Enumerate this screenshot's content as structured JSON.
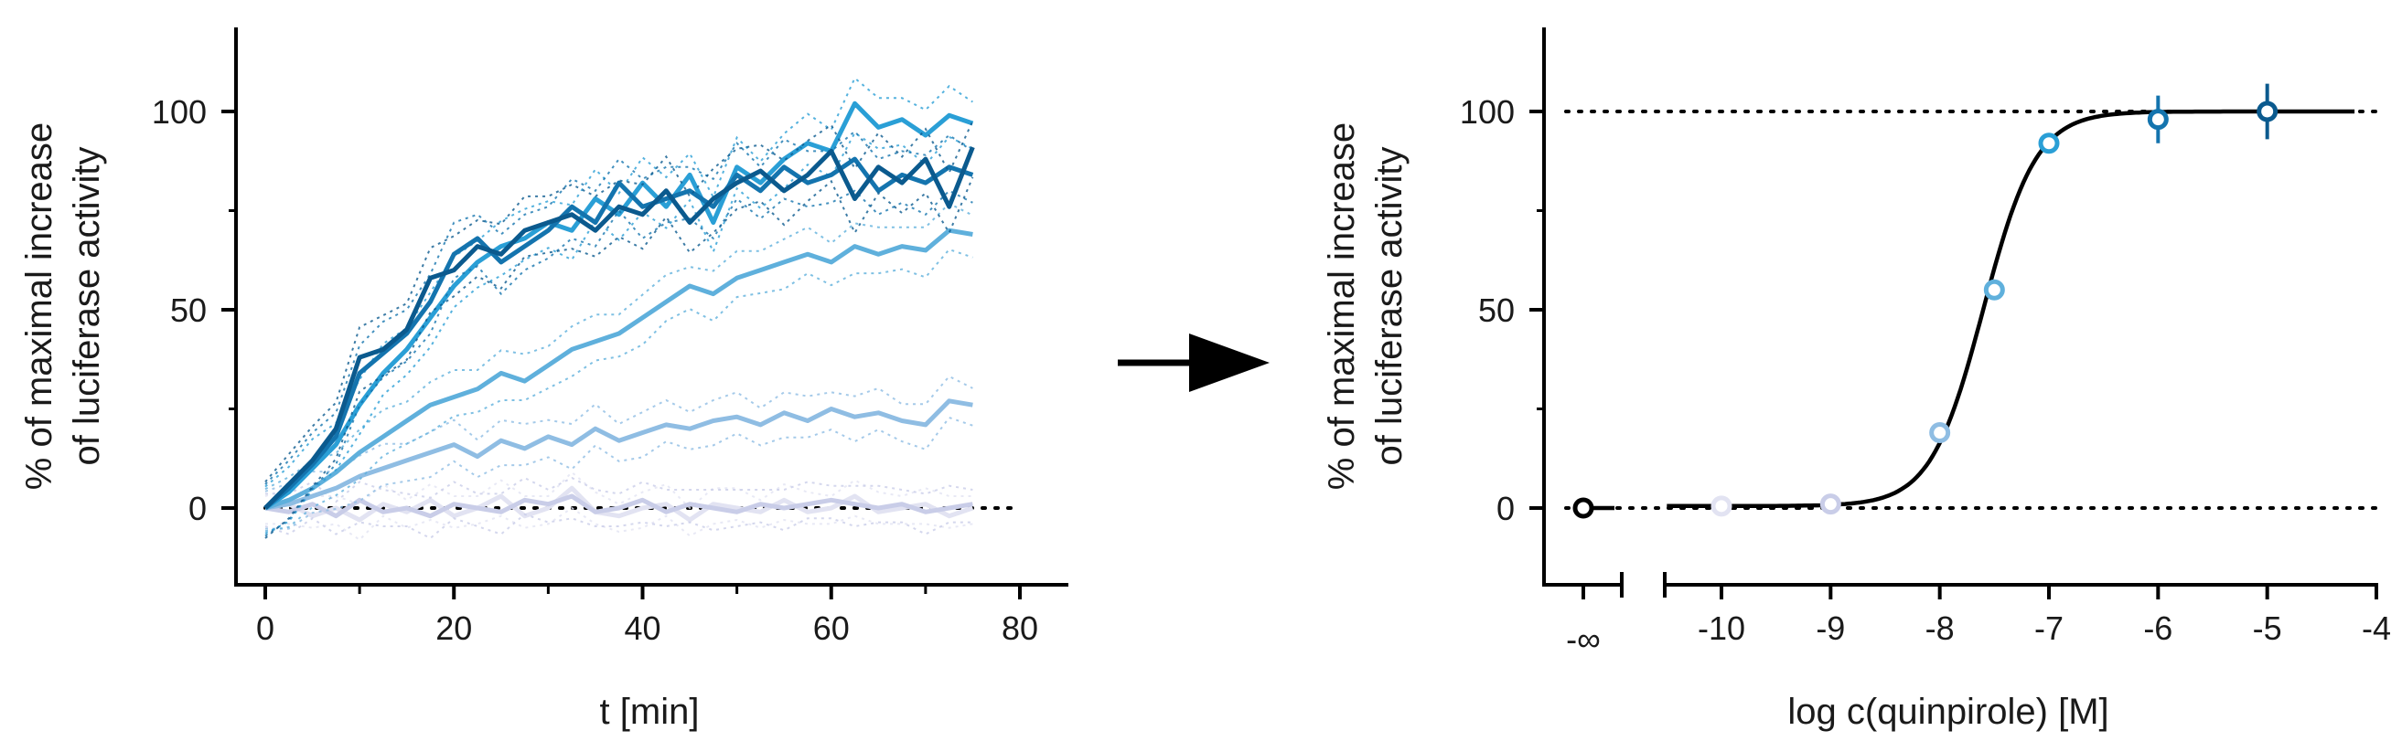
{
  "chart_data": [
    {
      "type": "line",
      "xlabel": "t [min]",
      "ylabel": [
        "% of maximal increase",
        "of luciferase activity"
      ],
      "xlim": [
        -3,
        88
      ],
      "ylim": [
        -20,
        120
      ],
      "x_ticks": [
        0,
        20,
        40,
        60,
        80
      ],
      "x_tick_labels": [
        "0",
        "20",
        "40",
        "60",
        "80"
      ],
      "y_ticks": [
        0,
        50,
        100
      ],
      "y_tick_labels": [
        "0",
        "50",
        "100"
      ],
      "reference_lines": [
        0
      ],
      "grid": false,
      "x": [
        0,
        2.5,
        5,
        7.5,
        10,
        12.5,
        15,
        17.5,
        20,
        22.5,
        25,
        27.5,
        30,
        32.5,
        35,
        37.5,
        40,
        42.5,
        45,
        47.5,
        50,
        52.5,
        55,
        57.5,
        60,
        62.5,
        65,
        67.5,
        70,
        72.5,
        75
      ],
      "series": [
        {
          "color": "#0b5a8e",
          "values": [
            0,
            6,
            12,
            20,
            38,
            40,
            45,
            58,
            60,
            66,
            64,
            70,
            72,
            74,
            70,
            76,
            74,
            80,
            72,
            78,
            82,
            85,
            80,
            84,
            90,
            78,
            86,
            82,
            88,
            76,
            91
          ]
        },
        {
          "color": "#1474ae",
          "values": [
            0,
            5,
            11,
            18,
            34,
            39,
            44,
            52,
            64,
            68,
            62,
            66,
            70,
            76,
            72,
            82,
            76,
            78,
            80,
            76,
            84,
            80,
            86,
            82,
            84,
            88,
            80,
            84,
            82,
            86,
            84
          ]
        },
        {
          "color": "#2a9fd6",
          "values": [
            0,
            4,
            10,
            16,
            26,
            34,
            40,
            48,
            56,
            62,
            66,
            68,
            72,
            70,
            78,
            74,
            82,
            76,
            84,
            72,
            86,
            82,
            88,
            92,
            90,
            102,
            96,
            98,
            94,
            99,
            97
          ]
        },
        {
          "color": "#5fb0dc",
          "values": [
            0,
            2,
            5,
            9,
            14,
            18,
            22,
            26,
            28,
            30,
            34,
            32,
            36,
            40,
            42,
            44,
            48,
            52,
            56,
            54,
            58,
            60,
            62,
            64,
            62,
            66,
            64,
            66,
            65,
            70,
            69
          ]
        },
        {
          "color": "#8fbde3",
          "values": [
            0,
            1,
            3,
            5,
            8,
            10,
            12,
            14,
            16,
            13,
            17,
            15,
            18,
            16,
            20,
            17,
            19,
            21,
            20,
            22,
            23,
            21,
            24,
            22,
            25,
            23,
            24,
            22,
            21,
            27,
            26
          ]
        },
        {
          "color": "#c9cde8",
          "values": [
            0,
            -1,
            1,
            -2,
            2,
            -1,
            0,
            -2,
            1,
            0,
            -1,
            2,
            1,
            3,
            -1,
            0,
            2,
            -1,
            1,
            0,
            -1,
            1,
            0,
            1,
            2,
            1,
            0,
            1,
            -1,
            0,
            1
          ]
        },
        {
          "color": "#e2e3f2",
          "values": [
            0,
            1,
            -2,
            0,
            -3,
            1,
            -1,
            2,
            -2,
            0,
            3,
            -2,
            0,
            5,
            -1,
            -2,
            0,
            1,
            -3,
            1,
            0,
            -1,
            2,
            -1,
            0,
            3,
            -1,
            0,
            1,
            -2,
            0
          ]
        }
      ]
    },
    {
      "type": "scatter",
      "xlabel": "log c(quinpirole) [M]",
      "ylabel": [
        "% of maximal increase",
        "of luciferase activity"
      ],
      "ylim": [
        -20,
        120
      ],
      "x_ticks": [
        -10,
        -9,
        -8,
        -7,
        -6,
        -5,
        -4
      ],
      "x_tick_labels": [
        "-10",
        "-9",
        "-8",
        "-7",
        "-6",
        "-5",
        "-4"
      ],
      "x_break_label": "-∞",
      "xlim": [
        -10.5,
        -4
      ],
      "y_ticks": [
        0,
        50,
        100
      ],
      "y_tick_labels": [
        "0",
        "50",
        "100"
      ],
      "reference_lines": [
        0,
        100
      ],
      "grid": false,
      "points": [
        {
          "x": "-∞",
          "y": 0,
          "color": "#000000"
        },
        {
          "x": -10,
          "y": 0.5,
          "color": "#e2e3f2"
        },
        {
          "x": -9,
          "y": 1,
          "color": "#c9cde8"
        },
        {
          "x": -8,
          "y": 19,
          "color": "#8fbde3"
        },
        {
          "x": -7.5,
          "y": 55,
          "color": "#5fb0dc"
        },
        {
          "x": -7,
          "y": 92,
          "color": "#2a9fd6"
        },
        {
          "x": -6,
          "y": 98,
          "color": "#1474ae",
          "err": 2
        },
        {
          "x": -5,
          "y": 100,
          "color": "#0b5a8e",
          "err": 3
        }
      ],
      "fit_curve": {
        "bottom": 0.5,
        "top": 100,
        "log_ec50": -7.6,
        "hill": 1.8,
        "x_range": [
          -10.5,
          -4.2
        ]
      }
    }
  ]
}
